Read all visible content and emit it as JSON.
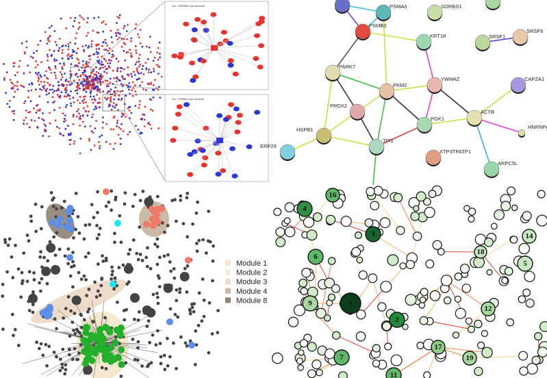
{
  "panels": {
    "top_left": {
      "insets": [
        {
          "title": "Src: CREBBP sub-Network"
        },
        {
          "title": "Src: STRBA2 sub-Network"
        }
      ],
      "colors": {
        "red": "#e8332f",
        "blue": "#2b35d8"
      }
    },
    "top_right": {
      "proteins": [
        "PSMA6",
        "PSMB3",
        "SORBS1",
        "KRT18",
        "SRSF1",
        "SRSF9",
        "PARK7",
        "PKM2",
        "YWHAZ",
        "CAPZA1",
        "PRDX2",
        "PGK1",
        "ACTB",
        "HNRNPAB",
        "HSPB1",
        "TPI1",
        "ERP29",
        "XTP3TPATP1",
        "ARPC5L"
      ]
    },
    "bottom_left": {
      "legend": [
        {
          "label": "Module 1",
          "color": "#f6e7cf"
        },
        {
          "label": "Module 2",
          "color": "#f8e8d6"
        },
        {
          "label": "Module 3",
          "color": "#eedccb"
        },
        {
          "label": "Module 4",
          "color": "#cbbba6"
        },
        {
          "label": "Module 8",
          "color": "#8f8274"
        }
      ],
      "colors": {
        "node": "#444444",
        "green": "#22b02a",
        "blue": "#5b8ee8",
        "salmon": "#f07a6a",
        "cyan": "#19e6f0"
      }
    },
    "bottom_right": {
      "hubs": [
        "1",
        "2",
        "3",
        "4",
        "5",
        "6",
        "7",
        "9",
        "11",
        "12",
        "14",
        "16",
        "17",
        "18",
        "19"
      ]
    }
  }
}
